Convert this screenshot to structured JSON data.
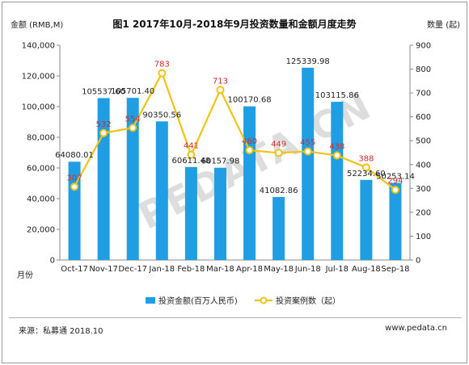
{
  "chart_data": {
    "type": "bar+line",
    "title": "图1 2017年10月-2018年9月投资数量和金额月度走势",
    "categories": [
      "Oct-17",
      "Nov-17",
      "Dec-17",
      "Jan-18",
      "Feb-18",
      "Mar-18",
      "Apr-18",
      "May-18",
      "Jun-18",
      "Jul-18",
      "Aug-18",
      "Sep-18"
    ],
    "y_left_label": "金额 (RMB,M)",
    "y_right_label": "数量 (起)",
    "x_axis_end_label": "月份",
    "y_left_ticks": [
      "0",
      "20,000",
      "40,000",
      "60,000",
      "80,000",
      "100,000",
      "120,000",
      "140,000"
    ],
    "y_right_ticks": [
      "0",
      "100",
      "200",
      "300",
      "400",
      "500",
      "600",
      "700",
      "800",
      "900"
    ],
    "ylim_left": [
      0,
      140000
    ],
    "ylim_right": [
      0,
      900
    ],
    "series": [
      {
        "name": "投资金额(百万人民币)",
        "kind": "bar",
        "axis": "left",
        "color": "#1f9ee3",
        "values": [
          64080.01,
          105537.6,
          105701.4,
          90350.56,
          60611.48,
          60157.98,
          100170.68,
          41082.86,
          125339.98,
          103115.86,
          52234.6,
          50253.14
        ],
        "labels": [
          "64080.01",
          "105537.60",
          "105701.40",
          "90350.56",
          "60611.48",
          "60157.98",
          "100170.68",
          "41082.86",
          "125339.98",
          "103115.86",
          "52234.60",
          "50253.14"
        ]
      },
      {
        "name": "投资案例数（起）",
        "kind": "line",
        "axis": "right",
        "color": "#f2c314",
        "label_color": "#d42a2a",
        "values": [
          307,
          532,
          554,
          783,
          441,
          713,
          460,
          449,
          455,
          438,
          388,
          294
        ],
        "labels": [
          "307",
          "532",
          "554",
          "783",
          "441",
          "713",
          "460",
          "449",
          "455",
          "438",
          "388",
          "294"
        ]
      }
    ],
    "watermark": "PEDATA.CN",
    "legend_position": "bottom-center",
    "grid": false
  },
  "footer": {
    "source": "来源：私募通 2018.10",
    "url": "www.pedata.cn"
  }
}
